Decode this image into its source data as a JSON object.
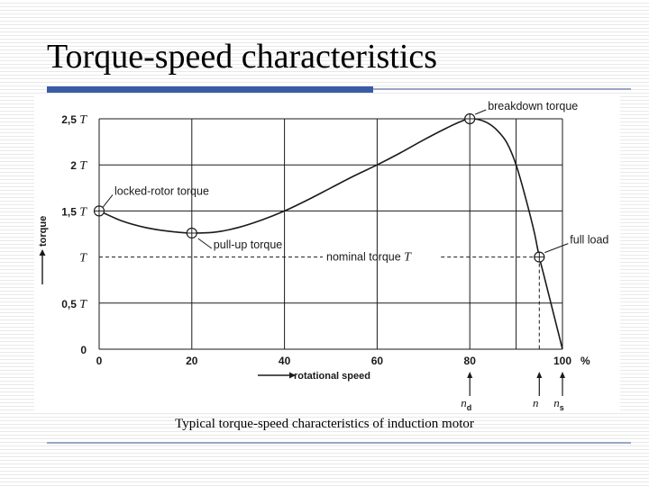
{
  "slide": {
    "title": "Torque-speed characteristics",
    "caption": "Typical torque-speed characteristics of induction motor"
  },
  "chart_data": {
    "type": "line",
    "title": "",
    "xlabel": "rotational speed",
    "ylabel": "torque",
    "xlim": [
      0,
      100
    ],
    "ylim": [
      0,
      2.5
    ],
    "grid": true,
    "x_ticks": [
      {
        "value": 0,
        "label": "0"
      },
      {
        "value": 20,
        "label": "20"
      },
      {
        "value": 40,
        "label": "40"
      },
      {
        "value": 60,
        "label": "60"
      },
      {
        "value": 80,
        "label": "80"
      },
      {
        "value": 100,
        "label": "100"
      }
    ],
    "x_unit_label": "%",
    "y_ticks": [
      {
        "value": 0,
        "label": "0",
        "unit": ""
      },
      {
        "value": 0.5,
        "label": "0,5",
        "unit": "T"
      },
      {
        "value": 1,
        "label": "",
        "unit": "T"
      },
      {
        "value": 1.5,
        "label": "1,5",
        "unit": "T"
      },
      {
        "value": 2,
        "label": "2",
        "unit": "T"
      },
      {
        "value": 2.5,
        "label": "2,5",
        "unit": "T"
      }
    ],
    "extra_gridlines_x": [
      90
    ],
    "series": [
      {
        "x": [
          0,
          5,
          10,
          15,
          20,
          25,
          30,
          35,
          40,
          45,
          50,
          55,
          60,
          65,
          70,
          75,
          78,
          80,
          82,
          84,
          86,
          88,
          90,
          92,
          94,
          95,
          96,
          98,
          100
        ],
        "y": [
          1.5,
          1.39,
          1.32,
          1.28,
          1.26,
          1.27,
          1.32,
          1.4,
          1.5,
          1.62,
          1.75,
          1.88,
          2.0,
          2.13,
          2.27,
          2.4,
          2.47,
          2.5,
          2.49,
          2.45,
          2.37,
          2.24,
          2.0,
          1.65,
          1.25,
          1.0,
          0.8,
          0.4,
          0.0
        ]
      }
    ],
    "marked_points": [
      {
        "x": 0,
        "y": 1.5,
        "label": "locked-rotor torque"
      },
      {
        "x": 20,
        "y": 1.26,
        "label": "pull-up torque"
      },
      {
        "x": 80,
        "y": 2.5,
        "label": "breakdown torque"
      },
      {
        "x": 95,
        "y": 1.0,
        "label": "full load"
      }
    ],
    "nominal_line": {
      "y": 1.0,
      "label_text": "nominal torque",
      "label_symbol": "T"
    },
    "speed_markers": [
      {
        "x": 80,
        "symbol": "n",
        "subscript": "d"
      },
      {
        "x": 95,
        "symbol": "n",
        "subscript": ""
      },
      {
        "x": 100,
        "symbol": "n",
        "subscript": "s"
      }
    ]
  }
}
